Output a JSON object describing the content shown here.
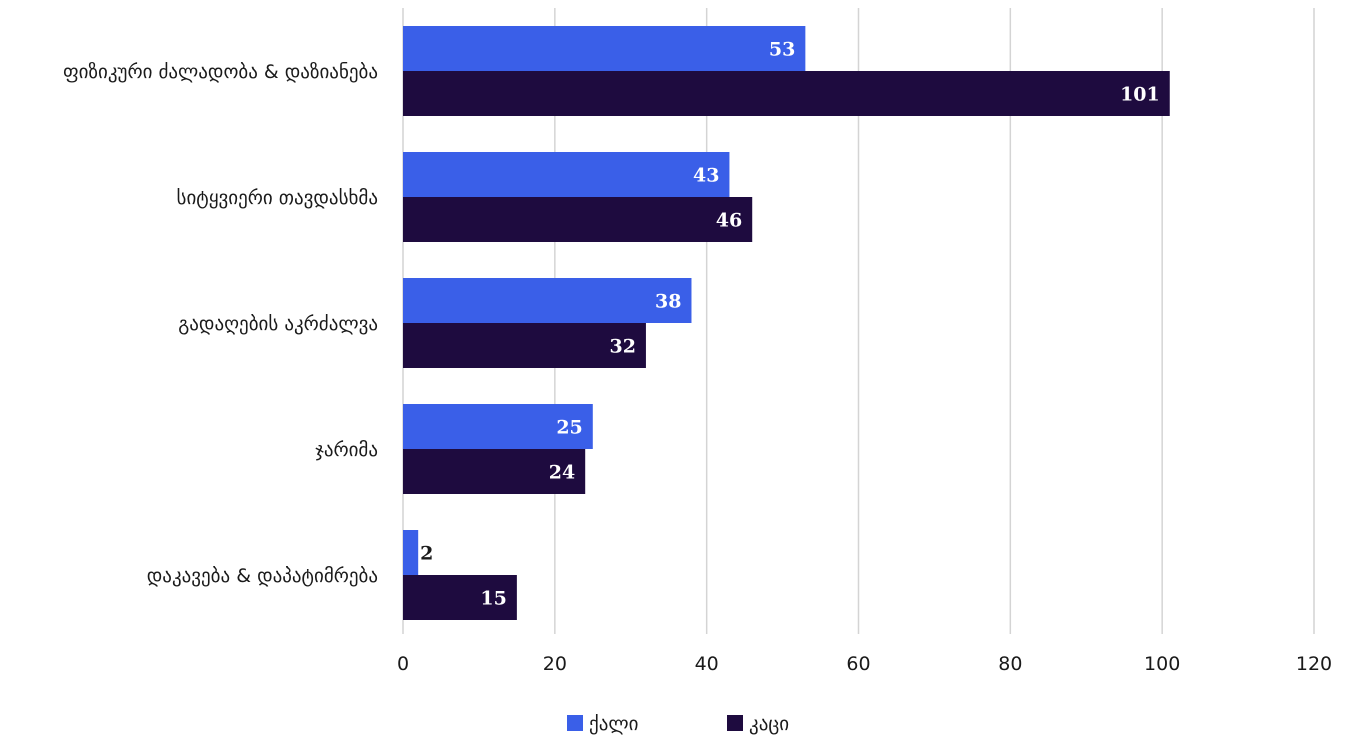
{
  "chart_data": {
    "type": "bar",
    "orientation": "horizontal",
    "categories": [
      "ფიზიკური ძალადობა & დაზიანება",
      "სიტყვიერი თავდასხმა",
      "გადაღების აკრძალვა",
      "ჯარიმა",
      "დაკავება & დაპატიმრება"
    ],
    "series": [
      {
        "name": "ქალი",
        "color": "#3a5fe8",
        "values": [
          53,
          43,
          38,
          25,
          2
        ]
      },
      {
        "name": "კაცი",
        "color": "#1e0b3f",
        "values": [
          101,
          46,
          32,
          24,
          15
        ]
      }
    ],
    "xlim": [
      0,
      120
    ],
    "xticks": [
      0,
      20,
      40,
      60,
      80,
      100,
      120
    ],
    "grid": true,
    "legend_position": "bottom",
    "title": "",
    "xlabel": "",
    "ylabel": ""
  }
}
